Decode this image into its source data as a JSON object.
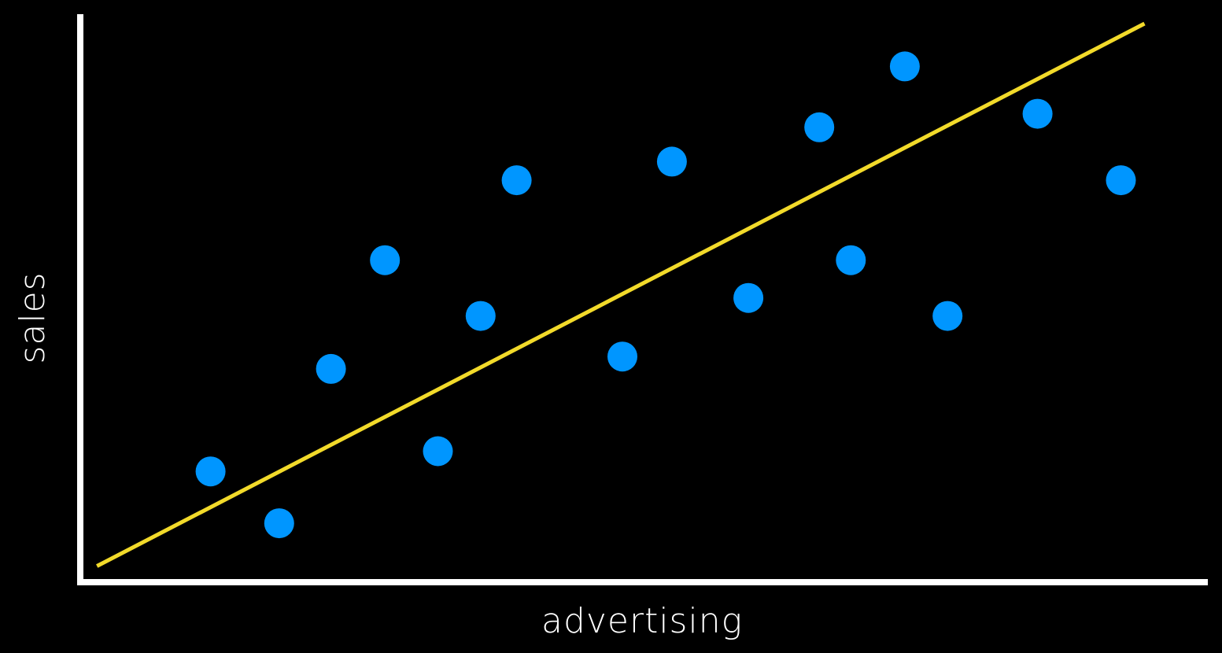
{
  "chart_data": {
    "type": "scatter",
    "title": "",
    "xlabel": "advertising",
    "ylabel": "sales",
    "xlim": [
      0,
      100
    ],
    "ylim": [
      0,
      100
    ],
    "grid": false,
    "legend": "none",
    "colors": {
      "background": "#000000",
      "axes": "#ffffff",
      "points": "#0096ff",
      "trendline": "#f2da2a"
    },
    "points": [
      {
        "x": 11.3,
        "y": 19.1
      },
      {
        "x": 17.4,
        "y": 9.9
      },
      {
        "x": 22.0,
        "y": 37.3
      },
      {
        "x": 26.8,
        "y": 56.6
      },
      {
        "x": 31.5,
        "y": 22.7
      },
      {
        "x": 35.3,
        "y": 46.7
      },
      {
        "x": 38.5,
        "y": 70.8
      },
      {
        "x": 47.9,
        "y": 39.5
      },
      {
        "x": 52.3,
        "y": 74.1
      },
      {
        "x": 59.1,
        "y": 49.9
      },
      {
        "x": 65.4,
        "y": 80.2
      },
      {
        "x": 68.2,
        "y": 56.6
      },
      {
        "x": 73.0,
        "y": 91.0
      },
      {
        "x": 76.8,
        "y": 46.7
      },
      {
        "x": 84.8,
        "y": 82.6
      },
      {
        "x": 92.2,
        "y": 70.8
      }
    ],
    "trendline": {
      "x": [
        1.2,
        94.3
      ],
      "y": [
        2.3,
        98.6
      ]
    }
  }
}
